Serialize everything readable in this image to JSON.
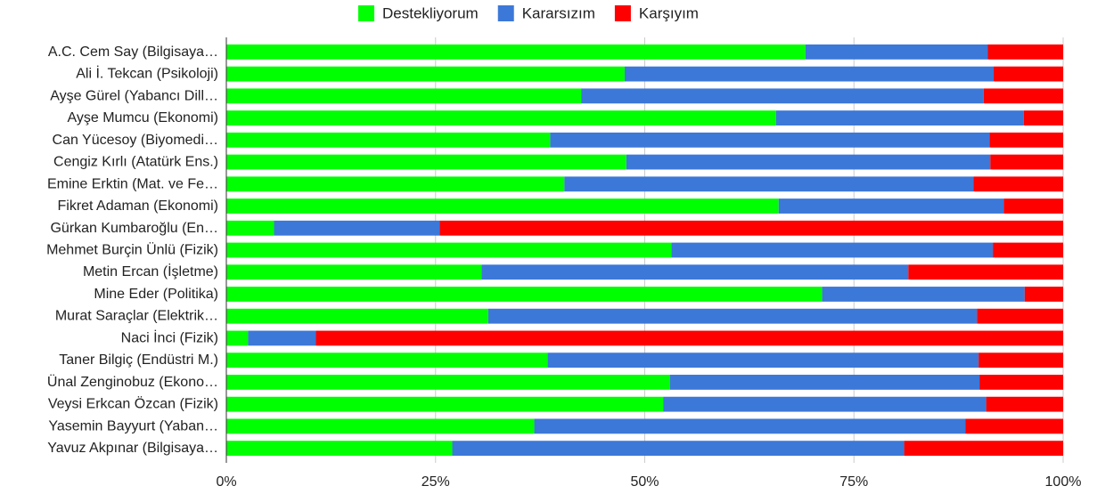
{
  "chart_data": {
    "type": "bar",
    "orientation": "horizontal",
    "stacked": true,
    "percent_stacked": true,
    "legend_position": "top",
    "grid": true,
    "categories": [
      "A.C. Cem Say (Bilgisaya…",
      "Ali İ. Tekcan (Psikoloji)",
      "Ayşe Gürel (Yabancı Dill…",
      "Ayşe Mumcu (Ekonomi)",
      "Can Yücesoy (Biyomedi…",
      "Cengiz Kırlı (Atatürk Ens.)",
      "Emine Erktin (Mat. ve Fe…",
      "Fikret Adaman (Ekonomi)",
      "Gürkan Kumbaroğlu (En…",
      "Mehmet Burçin Ünlü (Fizik)",
      "Metin Ercan (İşletme)",
      "Mine Eder (Politika)",
      "Murat Saraçlar (Elektrik…",
      "Naci İnci (Fizik)",
      "Taner Bilgiç (Endüstri M.)",
      "Ünal Zenginobuz (Ekono…",
      "Veysi Erkcan Özcan (Fizik)",
      "Yasemin Bayyurt (Yaban…",
      "Yavuz Akpınar (Bilgisaya…"
    ],
    "series": [
      {
        "name": "Destekliyorum",
        "color": "#00ff00",
        "values": [
          69.2,
          47.6,
          42.4,
          65.7,
          38.7,
          47.8,
          40.4,
          66.0,
          5.7,
          53.2,
          30.5,
          71.2,
          31.3,
          2.6,
          38.4,
          53.0,
          52.2,
          36.8,
          27.0
        ]
      },
      {
        "name": "Kararsızım",
        "color": "#3c78d8",
        "values": [
          21.8,
          44.1,
          48.1,
          29.6,
          52.5,
          43.5,
          48.9,
          26.9,
          19.8,
          38.4,
          51.0,
          24.2,
          58.4,
          8.1,
          51.5,
          37.0,
          38.6,
          51.5,
          54.0
        ]
      },
      {
        "name": "Karşıyım",
        "color": "#ff0000",
        "values": [
          9.0,
          8.3,
          9.5,
          4.7,
          8.8,
          8.7,
          10.7,
          7.1,
          74.5,
          8.4,
          18.5,
          4.6,
          10.3,
          89.3,
          10.1,
          10.0,
          9.2,
          11.7,
          19.0
        ]
      }
    ],
    "xlim": [
      0,
      100
    ],
    "xticks": [
      0,
      25,
      50,
      75,
      100
    ],
    "xtick_labels": [
      "0%",
      "25%",
      "50%",
      "75%",
      "100%"
    ]
  }
}
